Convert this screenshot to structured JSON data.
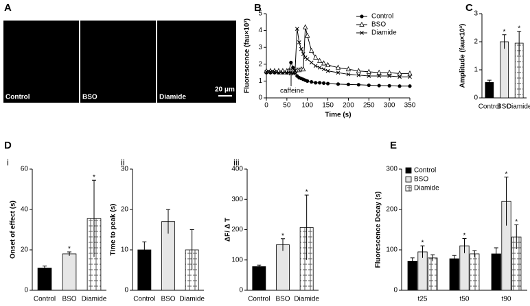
{
  "panel_labels": [
    "A",
    "B",
    "C",
    "D",
    "E"
  ],
  "subpanel_labels": [
    "i",
    "ii",
    "iii"
  ],
  "images": {
    "labels": [
      "Control",
      "BSO",
      "Diamide"
    ],
    "scale_bar": "20 μm"
  },
  "chart_data": [
    {
      "type": "line",
      "xlabel": "Time (s)",
      "ylabel": "Fluorescence (fau×10³)",
      "annotation": "caffeine",
      "x": [
        0,
        10,
        20,
        30,
        40,
        50,
        55,
        60,
        65,
        70,
        75,
        80,
        85,
        90,
        95,
        100,
        110,
        120,
        130,
        140,
        150,
        175,
        200,
        225,
        250,
        275,
        300,
        325,
        350
      ],
      "xlim": [
        0,
        350
      ],
      "xticks": [
        0,
        50,
        100,
        150,
        200,
        250,
        300,
        350
      ],
      "ylim": [
        0,
        5
      ],
      "yticks": [
        0,
        1,
        2,
        3,
        4,
        5
      ],
      "legend": "upper right",
      "series": [
        {
          "name": "Control",
          "color": "#000000",
          "marker": "circle",
          "values": [
            1.5,
            1.5,
            1.5,
            1.5,
            1.5,
            1.5,
            1.6,
            2.1,
            1.8,
            1.5,
            1.3,
            1.2,
            1.15,
            1.1,
            1.05,
            1.0,
            0.95,
            0.9,
            0.9,
            0.88,
            0.85,
            0.82,
            0.8,
            0.78,
            0.75,
            0.73,
            0.72,
            0.7,
            0.7
          ]
        },
        {
          "name": "BSO",
          "color": "#000000",
          "marker": "triangle",
          "values": [
            1.6,
            1.6,
            1.6,
            1.6,
            1.6,
            1.6,
            1.6,
            1.6,
            1.6,
            1.6,
            1.65,
            1.65,
            1.7,
            1.7,
            4.2,
            3.7,
            2.8,
            2.4,
            2.2,
            2.05,
            1.95,
            1.8,
            1.7,
            1.6,
            1.55,
            1.5,
            1.5,
            1.45,
            1.45
          ]
        },
        {
          "name": "Diamide",
          "color": "#000000",
          "marker": "x",
          "values": [
            1.55,
            1.55,
            1.55,
            1.5,
            1.5,
            1.5,
            1.5,
            1.5,
            1.45,
            1.6,
            4.1,
            3.3,
            2.9,
            2.6,
            2.4,
            2.3,
            2.1,
            1.9,
            1.8,
            1.7,
            1.6,
            1.5,
            1.4,
            1.35,
            1.3,
            1.3,
            1.3,
            1.25,
            1.25
          ]
        }
      ]
    },
    {
      "type": "bar",
      "ylabel": "Amplitude (fau×10³)",
      "categories": [
        "Control",
        "BSO",
        "Diamide"
      ],
      "values": [
        0.55,
        2.0,
        1.95
      ],
      "errors": [
        0.08,
        0.25,
        0.42
      ],
      "significance": [
        null,
        "*",
        "*"
      ],
      "colors": [
        "#000000",
        "#e6e6e6",
        "#ffffff"
      ],
      "hatch": [
        false,
        false,
        true
      ],
      "ylim": [
        0,
        3
      ],
      "yticks": [
        0,
        1,
        2,
        3
      ]
    },
    {
      "type": "bar",
      "ylabel": "Onset of effect (s)",
      "categories": [
        "Control",
        "BSO",
        "Diamide"
      ],
      "values": [
        11,
        18,
        35.5
      ],
      "errors": [
        1,
        1,
        19
      ],
      "significance": [
        null,
        "*",
        "*"
      ],
      "colors": [
        "#000000",
        "#e6e6e6",
        "#ffffff"
      ],
      "hatch": [
        false,
        false,
        true
      ],
      "ylim": [
        0,
        60
      ],
      "yticks": [
        0,
        20,
        40,
        60
      ]
    },
    {
      "type": "bar",
      "ylabel": "Time to peak (s)",
      "categories": [
        "Control",
        "BSO",
        "Diamide"
      ],
      "values": [
        10,
        17,
        10
      ],
      "errors": [
        2,
        3,
        5
      ],
      "significance": [
        null,
        null,
        null
      ],
      "colors": [
        "#000000",
        "#e6e6e6",
        "#ffffff"
      ],
      "hatch": [
        false,
        false,
        true
      ],
      "ylim": [
        0,
        30
      ],
      "yticks": [
        0,
        10,
        20,
        30
      ]
    },
    {
      "type": "bar",
      "ylabel": "ΔF/ Δ T",
      "categories": [
        "Control",
        "BSO",
        "Diamide"
      ],
      "values": [
        78,
        150,
        207
      ],
      "errors": [
        5,
        20,
        107
      ],
      "significance": [
        null,
        "*",
        "*"
      ],
      "colors": [
        "#000000",
        "#e6e6e6",
        "#ffffff"
      ],
      "hatch": [
        false,
        false,
        true
      ],
      "ylim": [
        0,
        400
      ],
      "yticks": [
        0,
        100,
        200,
        300,
        400
      ]
    },
    {
      "type": "grouped_bar",
      "ylabel": "Fluorescence Decay (s)",
      "categories": [
        "t25",
        "t50",
        "t90"
      ],
      "ylim": [
        0,
        300
      ],
      "yticks": [
        0,
        100,
        200,
        300
      ],
      "legend": "upper left",
      "series": [
        {
          "name": "Control",
          "color": "#000000",
          "hatch": false,
          "values": [
            72,
            78,
            90
          ],
          "errors": [
            8,
            8,
            15
          ],
          "significance": [
            null,
            null,
            null
          ]
        },
        {
          "name": "BSO",
          "color": "#e6e6e6",
          "hatch": false,
          "values": [
            95,
            110,
            220
          ],
          "errors": [
            15,
            18,
            60
          ],
          "significance": [
            "*",
            "*",
            "*"
          ]
        },
        {
          "name": "Diamide",
          "color": "#ffffff",
          "hatch": true,
          "values": [
            80,
            90,
            132
          ],
          "errors": [
            8,
            8,
            30
          ],
          "significance": [
            null,
            null,
            "*"
          ]
        }
      ]
    }
  ]
}
